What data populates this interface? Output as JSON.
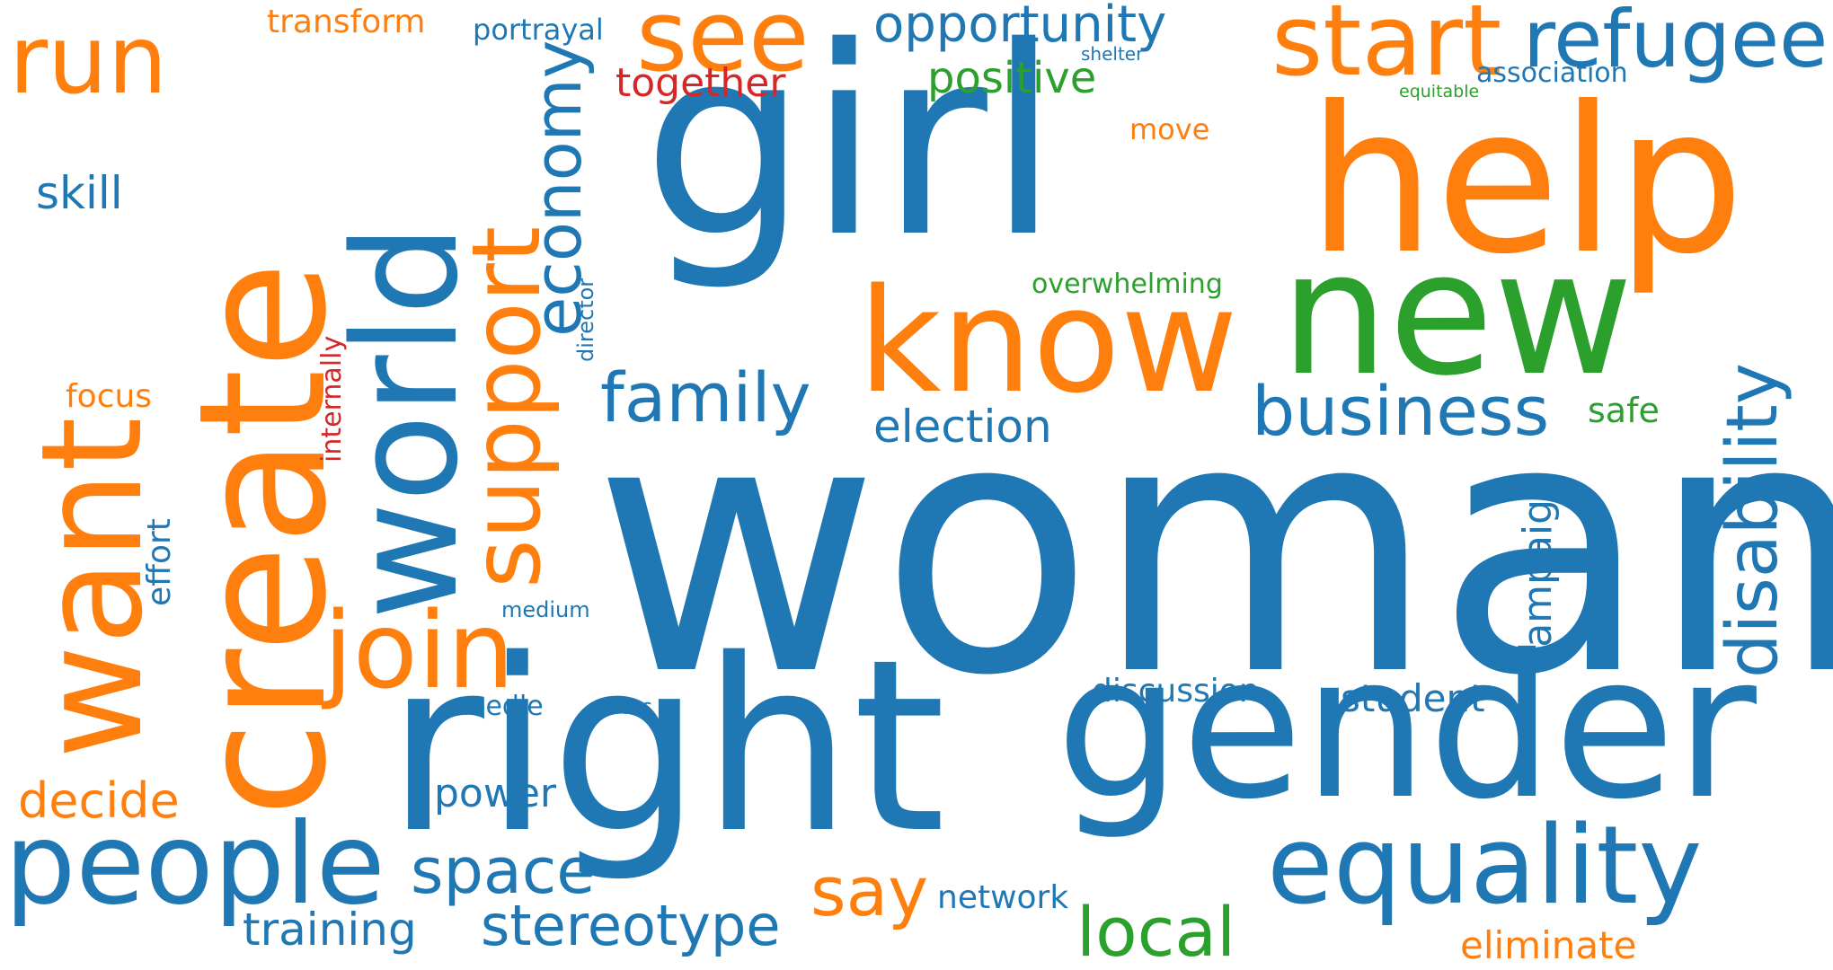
{
  "word_cloud": {
    "background": "#ffffff",
    "palette": {
      "blue": "#1f77b4",
      "orange": "#ff7f0e",
      "green": "#2ca02c",
      "red": "#d62728"
    },
    "words": {
      "woman": "woman",
      "girl": "girl",
      "right": "right",
      "gender": "gender",
      "help": "help",
      "new": "new",
      "know": "know",
      "create": "create",
      "want": "want",
      "world": "world",
      "people": "people",
      "equality": "equality",
      "join": "join",
      "support": "support",
      "start": "start",
      "see": "see",
      "run": "run",
      "refugee": "refugee",
      "economy": "economy",
      "disability": "disability",
      "local": "local",
      "family": "family",
      "business": "business",
      "say": "say",
      "space": "space",
      "stereotype": "stereotype",
      "opportunity": "opportunity",
      "decide": "decide",
      "training": "training",
      "election": "election",
      "positive": "positive",
      "skill": "skill",
      "power": "power",
      "student": "student",
      "together": "together",
      "eliminate": "eliminate",
      "campaign": "campaign",
      "network": "network",
      "discussion": "discussion",
      "safe": "safe",
      "transform": "transform",
      "focus": "focus",
      "effort": "effort",
      "portrayal": "portrayal",
      "internally": "internally",
      "overwhelming": "overwhelming",
      "move": "move",
      "association": "association",
      "needle": "needle",
      "medium": "medium",
      "exec": "exec",
      "director": "director",
      "shelter": "shelter",
      "equitable": "equitable"
    }
  }
}
